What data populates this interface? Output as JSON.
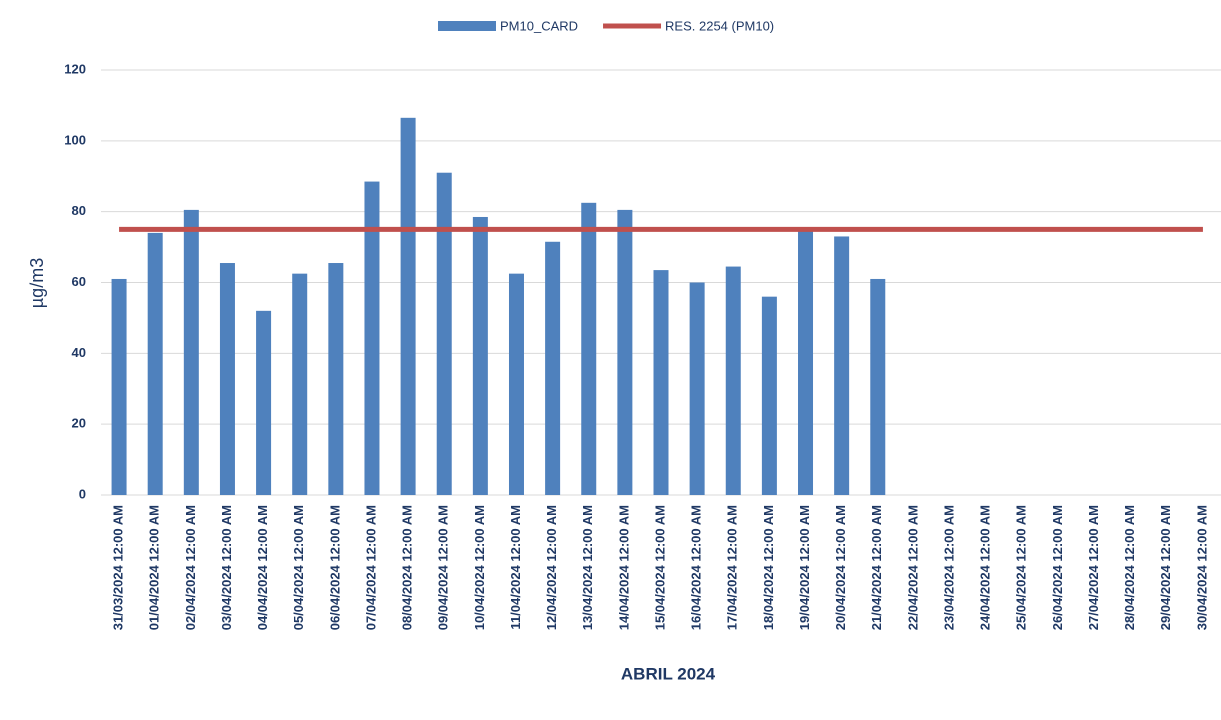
{
  "chart_data": {
    "type": "bar",
    "xlabel": "ABRIL 2024",
    "ylabel": "µg/m3",
    "categories": [
      "31/03/2024 12:00 AM",
      "01/04/2024 12:00 AM",
      "02/04/2024 12:00 AM",
      "03/04/2024 12:00 AM",
      "04/04/2024 12:00 AM",
      "05/04/2024 12:00 AM",
      "06/04/2024 12:00 AM",
      "07/04/2024 12:00 AM",
      "08/04/2024 12:00 AM",
      "09/04/2024 12:00 AM",
      "10/04/2024 12:00 AM",
      "11/04/2024 12:00 AM",
      "12/04/2024 12:00 AM",
      "13/04/2024 12:00 AM",
      "14/04/2024 12:00 AM",
      "15/04/2024 12:00 AM",
      "16/04/2024 12:00 AM",
      "17/04/2024 12:00 AM",
      "18/04/2024 12:00 AM",
      "19/04/2024 12:00 AM",
      "20/04/2024 12:00 AM",
      "21/04/2024 12:00 AM",
      "22/04/2024 12:00 AM",
      "23/04/2024 12:00 AM",
      "24/04/2024 12:00 AM",
      "25/04/2024 12:00 AM",
      "26/04/2024 12:00 AM",
      "27/04/2024 12:00 AM",
      "28/04/2024 12:00 AM",
      "29/04/2024 12:00 AM",
      "30/04/2024 12:00 AM"
    ],
    "series": [
      {
        "name": "PM10_CARD",
        "type": "bar",
        "color": "#4f81bd",
        "values": [
          61,
          74,
          80.5,
          65.5,
          52,
          62.5,
          65.5,
          88.5,
          106.5,
          91,
          78.5,
          62.5,
          71.5,
          82.5,
          80.5,
          63.5,
          60,
          64.5,
          56,
          75.5,
          73,
          61,
          null,
          null,
          null,
          null,
          null,
          null,
          null,
          null,
          null
        ]
      },
      {
        "name": "RES. 2254 (PM10)",
        "type": "line",
        "color": "#c0504d",
        "values": [
          75,
          75,
          75,
          75,
          75,
          75,
          75,
          75,
          75,
          75,
          75,
          75,
          75,
          75,
          75,
          75,
          75,
          75,
          75,
          75,
          75,
          75,
          75,
          75,
          75,
          75,
          75,
          75,
          75,
          75,
          75
        ]
      }
    ],
    "ylim": [
      0,
      120
    ],
    "yticks": [
      0,
      20,
      40,
      60,
      80,
      100,
      120
    ],
    "grid": true,
    "legend": "top"
  }
}
